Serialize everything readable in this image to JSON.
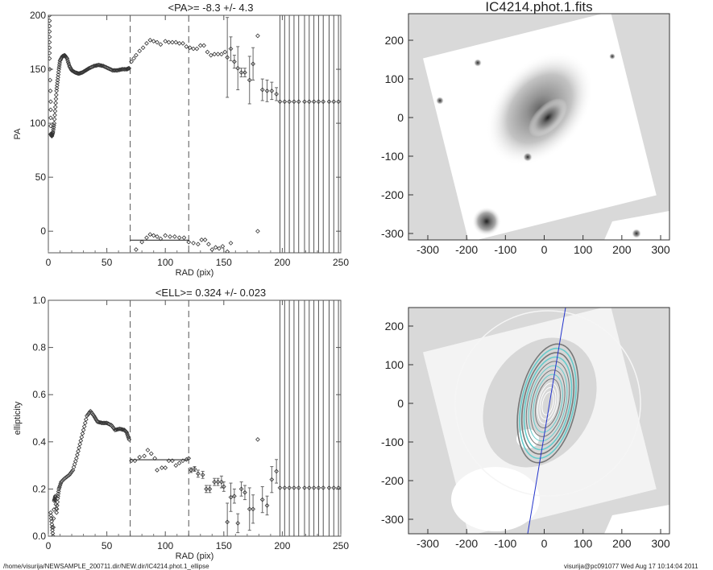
{
  "footer": {
    "path": "/home/visurija/NEWSAMPLE_200711.dir/NEW.dir/IC4214.phot.1_ellipse",
    "user_date": "visurija@pc091077  Wed Aug 17 10:14:04 2011"
  },
  "colors": {
    "axis": "#555555",
    "points": "#333333",
    "contour_cyan": "#66cccc",
    "axis_line_blue": "#2233cc",
    "mask_gray": "#d9d9d9"
  },
  "chart_data": [
    {
      "type": "scatter",
      "name": "pa-profile",
      "title": "<PA>=  -8.3 +/-   4.3",
      "xlabel": "RAD (pix)",
      "ylabel": "PA",
      "xlim": [
        0,
        250
      ],
      "ylim": [
        -20,
        200
      ],
      "xticks": [
        0,
        50,
        100,
        150,
        200,
        250
      ],
      "yticks": [
        0,
        50,
        100,
        150,
        200
      ],
      "vlines_dashed": [
        70,
        120
      ],
      "mean_line": {
        "value": -8.3,
        "from": 70,
        "to": 120
      },
      "points": [
        [
          1,
          200
        ],
        [
          1,
          180
        ],
        [
          1,
          160
        ],
        [
          2,
          120
        ],
        [
          2,
          90
        ],
        [
          3,
          88
        ],
        [
          4,
          92
        ],
        [
          5,
          100
        ],
        [
          6,
          115
        ],
        [
          7,
          130
        ],
        [
          8,
          140
        ],
        [
          9,
          150
        ],
        [
          10,
          158
        ],
        [
          12,
          162
        ],
        [
          14,
          163
        ],
        [
          16,
          160
        ],
        [
          18,
          153
        ],
        [
          20,
          149
        ],
        [
          23,
          147
        ],
        [
          26,
          146
        ],
        [
          29,
          147
        ],
        [
          32,
          149
        ],
        [
          35,
          151
        ],
        [
          39,
          153
        ],
        [
          43,
          154
        ],
        [
          47,
          153
        ],
        [
          51,
          151
        ],
        [
          55,
          149
        ],
        [
          59,
          149
        ],
        [
          63,
          150
        ],
        [
          67,
          150
        ],
        [
          69,
          151
        ],
        [
          71,
          157
        ],
        [
          73,
          160
        ],
        [
          75,
          163
        ],
        [
          78,
          167
        ],
        [
          81,
          170
        ],
        [
          84,
          174
        ],
        [
          87,
          177
        ],
        [
          90,
          176
        ],
        [
          93,
          175
        ],
        [
          96,
          173
        ],
        [
          100,
          176
        ],
        [
          103,
          175
        ],
        [
          106,
          175
        ],
        [
          109,
          175
        ],
        [
          112,
          174
        ],
        [
          115,
          174
        ],
        [
          118,
          171
        ],
        [
          121,
          170
        ],
        [
          124,
          169
        ],
        [
          127,
          169
        ],
        [
          130,
          172
        ],
        [
          133,
          172
        ],
        [
          136,
          166
        ],
        [
          139,
          163
        ],
        [
          142,
          164
        ],
        [
          145,
          164
        ],
        [
          148,
          164
        ],
        [
          151,
          166
        ]
      ],
      "errpoints": [
        [
          153,
          161,
          37
        ],
        [
          156,
          169,
          11
        ],
        [
          159,
          157,
          6
        ],
        [
          162,
          151,
          20
        ],
        [
          165,
          147,
          4
        ],
        [
          168,
          147,
          4
        ],
        [
          172,
          140,
          22
        ],
        [
          175,
          155,
          15
        ],
        [
          179,
          181,
          0
        ],
        [
          183,
          131,
          10
        ],
        [
          187,
          130,
          10
        ],
        [
          191,
          130,
          8
        ],
        [
          195,
          127,
          6
        ]
      ],
      "wrapped_points": [
        [
          71,
          -27
        ],
        [
          75,
          -17
        ],
        [
          80,
          -10
        ],
        [
          84,
          -6
        ],
        [
          87,
          -3
        ],
        [
          90,
          -4
        ],
        [
          93,
          -5
        ],
        [
          96,
          -7
        ],
        [
          100,
          -4
        ],
        [
          104,
          -5
        ],
        [
          108,
          -5
        ],
        [
          112,
          -6
        ],
        [
          116,
          -6
        ],
        [
          120,
          -10
        ],
        [
          124,
          -11
        ],
        [
          128,
          -12
        ],
        [
          131,
          -8
        ],
        [
          134,
          -8
        ],
        [
          137,
          -12
        ],
        [
          140,
          -17
        ],
        [
          143,
          -15
        ],
        [
          146,
          -16
        ],
        [
          149,
          -14
        ],
        [
          153,
          -19
        ],
        [
          156,
          -11
        ],
        [
          179,
          0
        ]
      ],
      "outer_points": {
        "r": [
          198,
          202,
          206,
          210,
          214,
          219,
          223,
          227,
          231,
          235,
          240,
          244,
          248
        ],
        "value": 120
      }
    },
    {
      "type": "scatter",
      "name": "ellipticity-profile",
      "title": "<ELL>= 0.324 +/-  0.023",
      "xlabel": "RAD (pix)",
      "ylabel": "ellipticity",
      "xlim": [
        0,
        250
      ],
      "ylim": [
        0,
        1
      ],
      "xticks": [
        0,
        50,
        100,
        150,
        200,
        250
      ],
      "yticks": [
        "0.0",
        "0.2",
        "0.4",
        "0.6",
        "0.8",
        "1.0"
      ],
      "vlines_dashed": [
        70,
        120
      ],
      "mean_line": {
        "value": 0.324,
        "from": 70,
        "to": 120
      },
      "points": [
        [
          2,
          0.1
        ],
        [
          3,
          0.05
        ],
        [
          4,
          0.0
        ],
        [
          5,
          0.15
        ],
        [
          6,
          0.17
        ],
        [
          7,
          0.1
        ],
        [
          8,
          0.16
        ],
        [
          9,
          0.2
        ],
        [
          11,
          0.23
        ],
        [
          14,
          0.245
        ],
        [
          18,
          0.26
        ],
        [
          21,
          0.28
        ],
        [
          24,
          0.33
        ],
        [
          27,
          0.39
        ],
        [
          30,
          0.45
        ],
        [
          33,
          0.51
        ],
        [
          36,
          0.53
        ],
        [
          39,
          0.51
        ],
        [
          42,
          0.485
        ],
        [
          46,
          0.48
        ],
        [
          50,
          0.48
        ],
        [
          54,
          0.47
        ],
        [
          57,
          0.45
        ],
        [
          61,
          0.455
        ],
        [
          65,
          0.45
        ],
        [
          67,
          0.44
        ],
        [
          69,
          0.41
        ],
        [
          71,
          0.32
        ],
        [
          74,
          0.32
        ],
        [
          78,
          0.335
        ],
        [
          82,
          0.34
        ],
        [
          85,
          0.365
        ],
        [
          88,
          0.35
        ],
        [
          91,
          0.33
        ],
        [
          93,
          0.28
        ],
        [
          97,
          0.29
        ],
        [
          100,
          0.29
        ],
        [
          103,
          0.32
        ],
        [
          106,
          0.32
        ],
        [
          109,
          0.3
        ],
        [
          112,
          0.31
        ],
        [
          115,
          0.32
        ],
        [
          118,
          0.325
        ],
        [
          120,
          0.33
        ]
      ],
      "errpoints": [
        [
          122,
          0.28,
          0.01
        ],
        [
          125,
          0.285,
          0.01
        ],
        [
          128,
          0.265,
          0.015
        ],
        [
          132,
          0.26,
          0.015
        ],
        [
          135,
          0.2,
          0.015
        ],
        [
          138,
          0.2,
          0.015
        ],
        [
          142,
          0.23,
          0.015
        ],
        [
          145,
          0.23,
          0.015
        ],
        [
          148,
          0.23,
          0.025
        ],
        [
          150,
          0.21,
          0.02
        ],
        [
          153,
          0.06,
          0.08
        ],
        [
          156,
          0.165,
          0.06
        ],
        [
          159,
          0.17,
          0.03
        ],
        [
          162,
          0.055,
          0.04
        ],
        [
          165,
          0.2,
          0.03
        ],
        [
          168,
          0.185,
          0.03
        ],
        [
          172,
          0.115,
          0.09
        ],
        [
          175,
          0.115,
          0.06
        ],
        [
          179,
          0.41,
          0
        ],
        [
          183,
          0.155,
          0.055
        ],
        [
          187,
          0.13,
          0.04
        ],
        [
          191,
          0.24,
          0.055
        ],
        [
          195,
          0.275,
          0.05
        ]
      ],
      "outer_points": {
        "r": [
          198,
          202,
          206,
          210,
          214,
          219,
          223,
          227,
          231,
          235,
          240,
          244,
          248
        ],
        "value": 0.205
      }
    },
    {
      "type": "image",
      "name": "fits-image",
      "title": "IC4214.phot.1.fits",
      "xticks": [
        -300,
        -200,
        -100,
        0,
        100,
        200,
        300
      ],
      "yticks": [
        -300,
        -200,
        -100,
        0,
        100,
        200
      ]
    },
    {
      "type": "image",
      "name": "masked-image-with-ellipses",
      "title": "",
      "xticks": [
        -300,
        -200,
        -100,
        0,
        100,
        200,
        300
      ],
      "yticks": [
        -300,
        -200,
        -100,
        0,
        100,
        200
      ]
    }
  ]
}
